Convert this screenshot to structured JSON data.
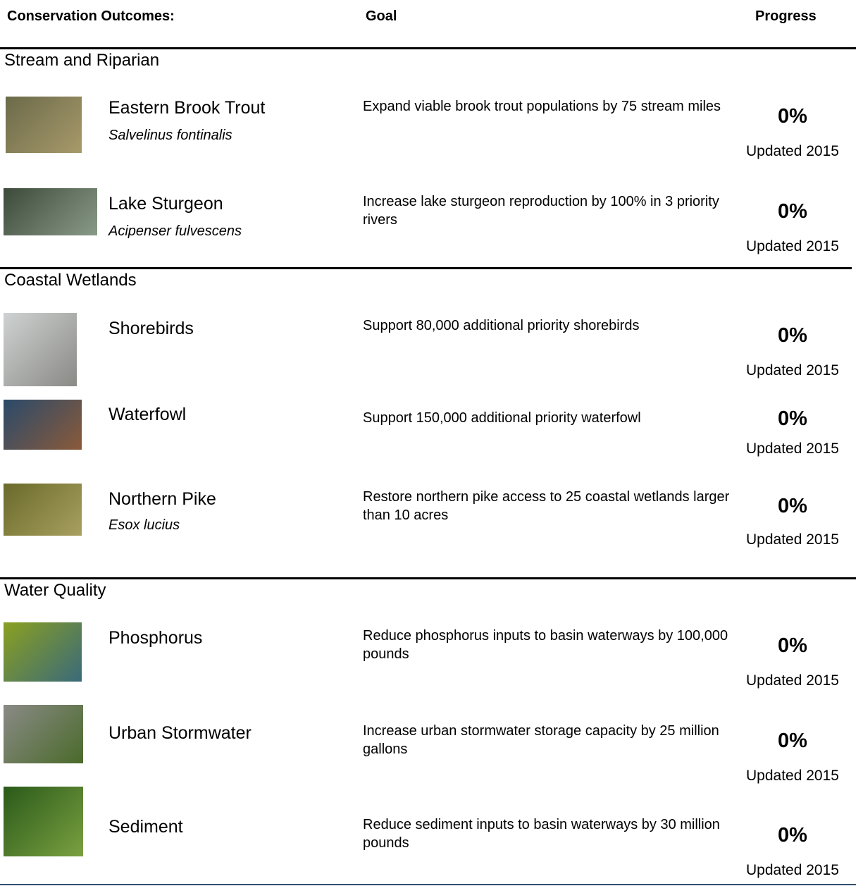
{
  "header": {
    "outcome": "Conservation Outcomes:",
    "goal": "Goal",
    "progress": "Progress"
  },
  "sections": [
    {
      "title": "Stream and Riparian",
      "rows": [
        {
          "name": "Eastern Brook Trout",
          "scientific_name": "Salvelinus fontinalis",
          "goal": "Expand viable brook trout populations by 75 stream miles",
          "progress": "0%",
          "updated": "Updated 2015"
        },
        {
          "name": "Lake Sturgeon",
          "scientific_name": "Acipenser fulvescens",
          "goal": "Increase lake sturgeon reproduction by 100% in 3 priority rivers",
          "progress": "0%",
          "updated": "Updated 2015"
        }
      ]
    },
    {
      "title": "Coastal Wetlands",
      "rows": [
        {
          "name": "Shorebirds",
          "goal": "Support 80,000 additional priority shorebirds",
          "progress": "0%",
          "updated": "Updated 2015"
        },
        {
          "name": "Waterfowl",
          "goal": "Support 150,000 additional priority waterfowl",
          "progress": "0%",
          "updated": "Updated 2015"
        },
        {
          "name": "Northern Pike",
          "scientific_name": "Esox lucius",
          "goal": "Restore northern pike access to 25 coastal wetlands larger than 10 acres",
          "progress": "0%",
          "updated": "Updated 2015"
        }
      ]
    },
    {
      "title": "Water Quality",
      "rows": [
        {
          "name": "Phosphorus",
          "goal": "Reduce phosphorus inputs to basin waterways by 100,000 pounds",
          "progress": "0%",
          "updated": "Updated 2015"
        },
        {
          "name": "Urban Stormwater",
          "goal": "Increase urban stormwater storage capacity by 25 million gallons",
          "progress": "0%",
          "updated": "Updated 2015"
        },
        {
          "name": "Sediment",
          "goal": "Reduce sediment inputs to basin waterways by 30 million pounds",
          "progress": "0%",
          "updated": "Updated 2015"
        }
      ]
    }
  ]
}
